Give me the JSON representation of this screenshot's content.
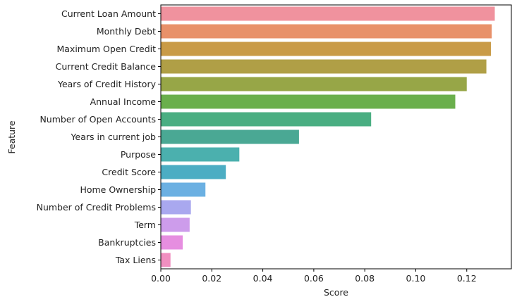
{
  "chart_data": {
    "type": "bar",
    "orientation": "horizontal",
    "xlabel": "Score",
    "ylabel": "Feature",
    "xlim": [
      0,
      0.1375
    ],
    "xticks": [
      0.0,
      0.02,
      0.04,
      0.06,
      0.08,
      0.1,
      0.12
    ],
    "xtick_labels": [
      "0.00",
      "0.02",
      "0.04",
      "0.06",
      "0.08",
      "0.10",
      "0.12"
    ],
    "grid": false,
    "categories": [
      "Current Loan Amount",
      "Monthly Debt",
      "Maximum Open Credit",
      "Current Credit Balance",
      "Years of Credit History",
      "Annual Income",
      "Number of Open Accounts",
      "Years in current job",
      "Purpose",
      "Credit Score",
      "Home Ownership",
      "Number of Credit Problems",
      "Term",
      "Bankruptcies",
      "Tax Liens"
    ],
    "values": [
      0.131,
      0.1298,
      0.1295,
      0.1277,
      0.12,
      0.1155,
      0.0825,
      0.0542,
      0.0308,
      0.0255,
      0.0175,
      0.0118,
      0.0113,
      0.0086,
      0.0038
    ],
    "colors": [
      "#f0929e",
      "#e8916a",
      "#c99b47",
      "#b09f46",
      "#97a647",
      "#6aaf4c",
      "#4aae82",
      "#4aa894",
      "#4bb0ae",
      "#4cadc3",
      "#6bb0e2",
      "#a9a8ef",
      "#cd9ceb",
      "#e68ee0",
      "#f08fc0"
    ]
  }
}
